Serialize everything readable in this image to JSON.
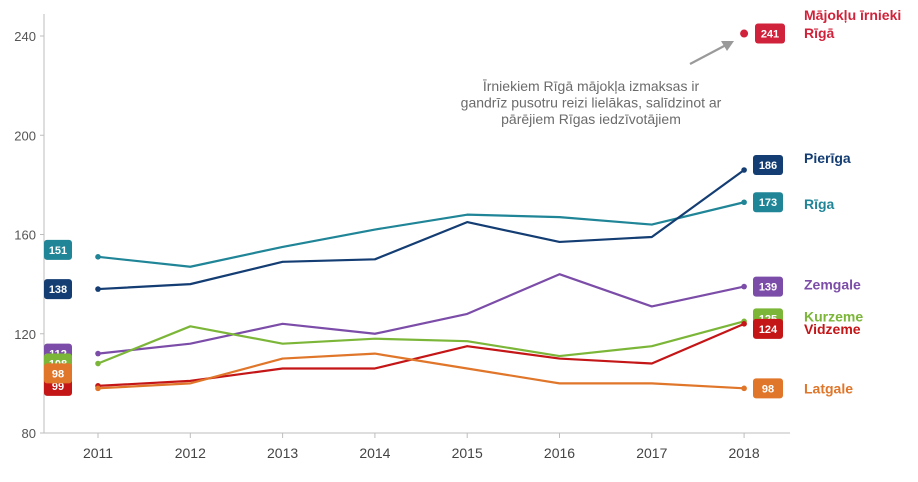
{
  "chart_data": {
    "type": "line",
    "x": [
      "2011",
      "2012",
      "2013",
      "2014",
      "2015",
      "2016",
      "2017",
      "2018"
    ],
    "ylim": [
      80,
      245
    ],
    "yticks": [
      80,
      120,
      160,
      200,
      240
    ],
    "grid": false,
    "legend": "right",
    "series": [
      {
        "name": "Rīga",
        "color": "#1f8597",
        "values": [
          151,
          147,
          155,
          162,
          168,
          167,
          164,
          173
        ]
      },
      {
        "name": "Pierīga",
        "color": "#133d73",
        "values": [
          138,
          140,
          149,
          150,
          165,
          157,
          159,
          186
        ]
      },
      {
        "name": "Zemgale",
        "color": "#7c4da8",
        "values": [
          112,
          116,
          124,
          120,
          128,
          144,
          131,
          139
        ]
      },
      {
        "name": "Kurzeme",
        "color": "#7cb639",
        "values": [
          108,
          123,
          116,
          118,
          117,
          111,
          115,
          125
        ]
      },
      {
        "name": "Vidzeme",
        "color": "#c41517",
        "values": [
          99,
          101,
          106,
          106,
          115,
          110,
          108,
          124
        ]
      },
      {
        "name": "Latgale",
        "color": "#e0762a",
        "values": [
          98,
          100,
          110,
          112,
          106,
          100,
          100,
          98
        ]
      }
    ],
    "highlight": {
      "name": "Mājokļu īrnieki Rīgā",
      "x": "2018",
      "value": 241,
      "color": "#d0223a"
    },
    "annotation": {
      "lines": [
        "Īrniekiem Rīgā mājokļa izmaksas ir",
        "gandrīz pusotru reizi lielākas, salīdzinot ar",
        "pārējiem Rīgas iedzīvotājiem"
      ]
    }
  }
}
